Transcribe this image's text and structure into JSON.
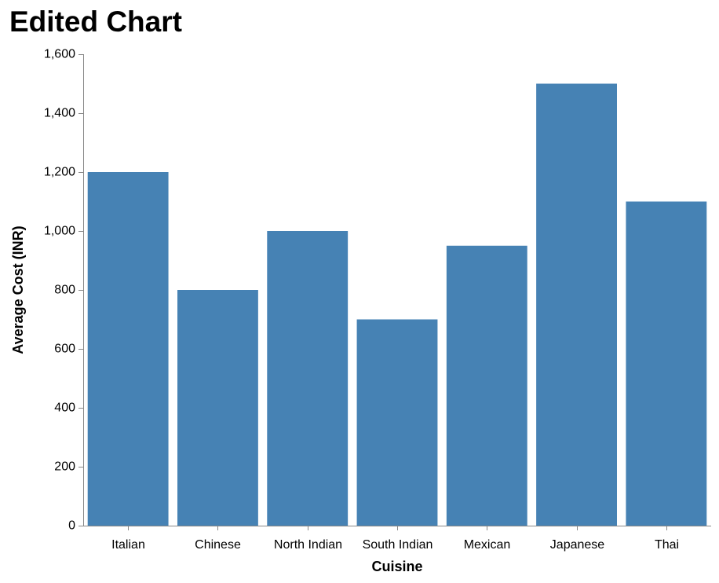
{
  "chart_data": {
    "type": "bar",
    "title": "Edited Chart",
    "xlabel": "Cuisine",
    "ylabel": "Average Cost (INR)",
    "categories": [
      "Italian",
      "Chinese",
      "North Indian",
      "South Indian",
      "Mexican",
      "Japanese",
      "Thai"
    ],
    "values": [
      1200,
      800,
      1000,
      700,
      950,
      1500,
      1100
    ],
    "ylim": [
      0,
      1600
    ],
    "yticks": [
      "0",
      "200",
      "400",
      "600",
      "800",
      "1,000",
      "1,200",
      "1,400",
      "1,600"
    ],
    "ytick_values": [
      0,
      200,
      400,
      600,
      800,
      1000,
      1200,
      1400,
      1600
    ],
    "grid": false,
    "bar_color": "#4682b4",
    "axis_color": "#888888"
  }
}
